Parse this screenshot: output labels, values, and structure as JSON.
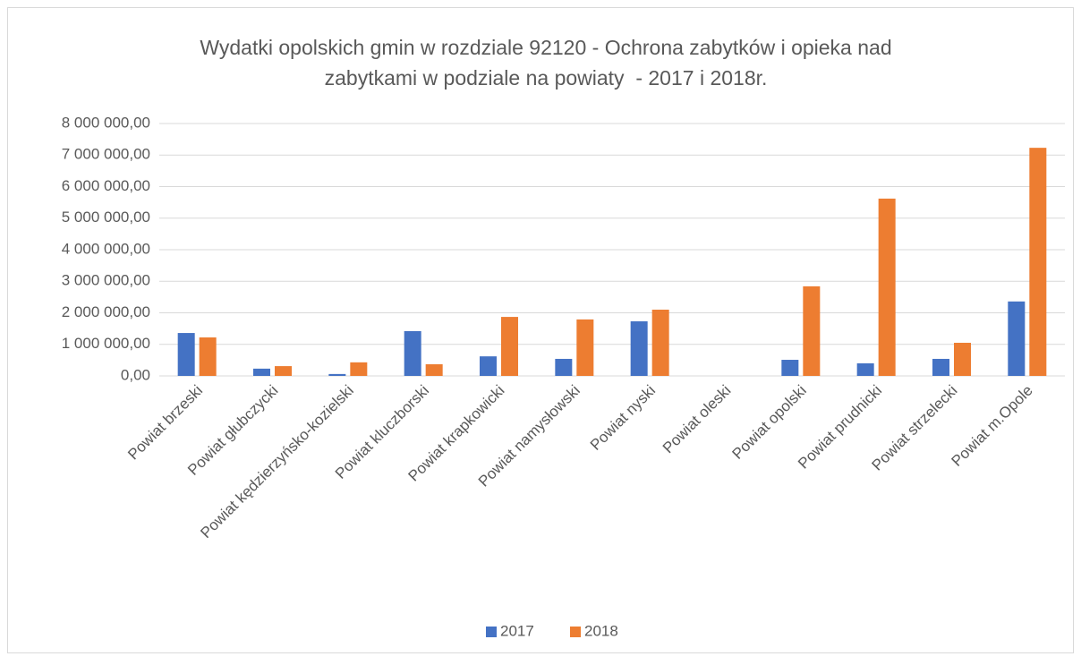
{
  "chart_data": {
    "type": "bar",
    "title": [
      "Wydatki opolskich gmin w rozdziale 92120 - Ochrona zabytków i opieka nad",
      "zabytkami w podziale na powiaty  - 2017 i 2018r."
    ],
    "categories": [
      "Powiat brzeski",
      "Powiat głubczycki",
      "Powiat kędzierzyńsko-kozielski",
      "Powiat kluczborski",
      "Powiat krapkowicki",
      "Powiat namysłowski",
      "Powiat nyski",
      "Powiat oleski",
      "Powiat opolski",
      "Powiat prudnicki",
      "Powiat strzelecki",
      "Powiat m.Opole"
    ],
    "series": [
      {
        "name": "2017",
        "color": "#4472c4",
        "values": [
          1360000,
          230000,
          60000,
          1420000,
          620000,
          540000,
          1730000,
          0,
          510000,
          400000,
          540000,
          2360000
        ]
      },
      {
        "name": "2018",
        "color": "#ed7d31",
        "values": [
          1220000,
          310000,
          430000,
          370000,
          1870000,
          1790000,
          2100000,
          0,
          2840000,
          5620000,
          1050000,
          7230000
        ]
      }
    ],
    "ylim": [
      0,
      8000000
    ],
    "yticks": [
      {
        "value": 0,
        "label": "0,00"
      },
      {
        "value": 1000000,
        "label": "1 000 000,00"
      },
      {
        "value": 2000000,
        "label": "2 000 000,00"
      },
      {
        "value": 3000000,
        "label": "3 000 000,00"
      },
      {
        "value": 4000000,
        "label": "4 000 000,00"
      },
      {
        "value": 5000000,
        "label": "5 000 000,00"
      },
      {
        "value": 6000000,
        "label": "6 000 000,00"
      },
      {
        "value": 7000000,
        "label": "7 000 000,00"
      },
      {
        "value": 8000000,
        "label": "8 000 000,00"
      }
    ],
    "grid": true,
    "legend": "bottom"
  }
}
